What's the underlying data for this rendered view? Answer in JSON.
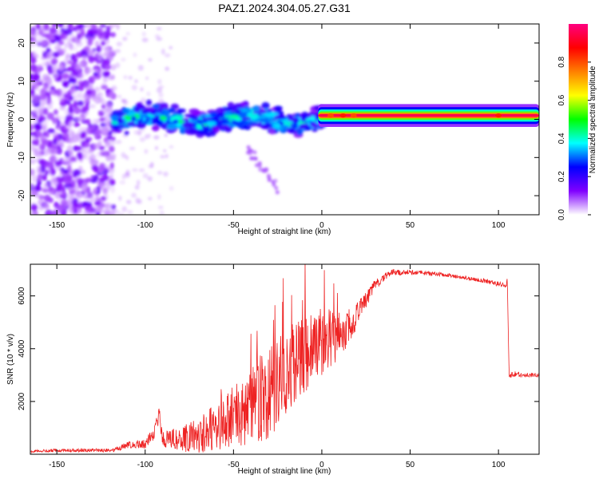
{
  "figure": {
    "title": "PAZ1.2024.304.05.27.G31"
  },
  "chart_data": [
    {
      "type": "heatmap",
      "title": "PAZ1.2024.304.05.27.G31",
      "xlabel": "Height of straight line (km)",
      "ylabel": "Frequency (Hz)",
      "xlim": [
        -165,
        123
      ],
      "ylim": [
        -25,
        25
      ],
      "xticks": [
        -150,
        -100,
        -50,
        0,
        50,
        100
      ],
      "yticks": [
        -20,
        -10,
        0,
        10,
        20
      ],
      "grid": false,
      "colorbar": {
        "label": "Normalized spectral amplitude",
        "ticks": [
          0.0,
          0.2,
          0.4,
          0.6,
          0.8
        ],
        "range": [
          0,
          1
        ],
        "colors": [
          "#ffffff",
          "#8000ff",
          "#0000ff",
          "#00ffff",
          "#00ff00",
          "#ffff00",
          "#ff8000",
          "#ff0000",
          "#ff0080"
        ]
      },
      "features": [
        {
          "region": "scattered noise",
          "x_range": [
            -165,
            -118
          ],
          "freq_range": [
            -25,
            25
          ],
          "amplitude": 0.1
        },
        {
          "region": "turbulent band",
          "x_range": [
            -118,
            0
          ],
          "freq_range": [
            -5,
            5
          ],
          "amplitude": 0.35
        },
        {
          "region": "stable tone",
          "x_range": [
            0,
            123
          ],
          "center_freq_hz": 1,
          "half_width_hz": 1.5,
          "amplitude": 0.95
        }
      ]
    },
    {
      "type": "line",
      "xlabel": "Height of straight line (km)",
      "ylabel": "SNR (10 * v/v)",
      "xlim": [
        -165,
        123
      ],
      "ylim": [
        0,
        7200
      ],
      "xticks": [
        -150,
        -100,
        -50,
        0,
        50,
        100
      ],
      "yticks": [
        2000,
        4000,
        6000
      ],
      "grid": false,
      "line_color": "#ee2222",
      "series": [
        {
          "x": [
            -165,
            -150,
            -130,
            -118,
            -110,
            -100,
            -95,
            -92,
            -90,
            -80,
            -70,
            -60,
            -50,
            -40,
            -30,
            -25,
            -20,
            -15,
            -10,
            -5,
            0,
            5,
            10,
            15,
            20,
            25,
            30,
            35,
            40,
            50,
            60,
            70,
            80,
            90,
            100,
            104,
            105,
            106,
            110,
            115,
            123
          ],
          "y": [
            100,
            150,
            150,
            150,
            350,
            400,
            800,
            1500,
            550,
            600,
            750,
            1000,
            1400,
            1800,
            2300,
            2700,
            3200,
            3500,
            3700,
            4000,
            4200,
            4300,
            4500,
            4800,
            5300,
            5900,
            6400,
            6700,
            6900,
            6900,
            6850,
            6800,
            6700,
            6600,
            6450,
            6350,
            6600,
            3000,
            3050,
            3000,
            3000
          ]
        }
      ],
      "noise_envelope": {
        "x": [
          -165,
          -118,
          -105,
          -95,
          -90,
          -80,
          -70,
          -60,
          -50,
          -40,
          -30,
          -20,
          -10,
          0,
          10,
          20,
          30,
          40,
          50,
          60,
          70,
          80,
          90,
          100,
          105,
          106,
          110,
          123
        ],
        "amp": [
          60,
          70,
          150,
          250,
          300,
          500,
          700,
          900,
          1200,
          1500,
          1700,
          1700,
          1500,
          1200,
          900,
          500,
          200,
          120,
          90,
          80,
          70,
          70,
          80,
          90,
          120,
          150,
          100,
          80
        ]
      }
    }
  ]
}
